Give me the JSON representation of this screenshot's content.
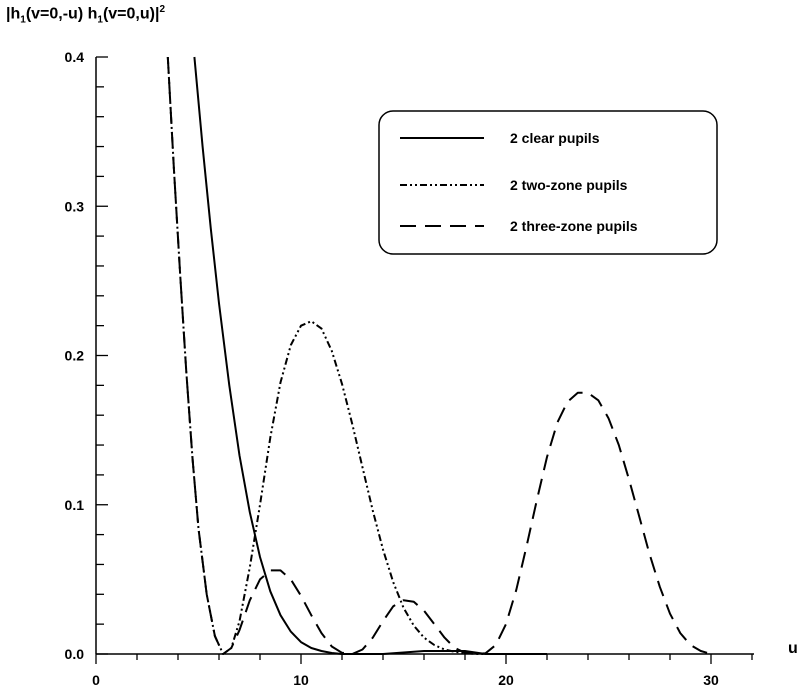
{
  "chart_data": {
    "type": "line",
    "ylabel": "|h1(v=0,-u) h1(v=0,u)|²",
    "ylabel_parts": {
      "p1": "|h",
      "s1": "1",
      "p2": "(v=0,-u) h",
      "s2": "1",
      "p3": "(v=0,u)|",
      "sup": "2"
    },
    "xlabel": "u",
    "xlim": [
      0,
      32
    ],
    "ylim": [
      0,
      0.4
    ],
    "xticks": [
      0,
      10,
      20,
      30
    ],
    "xtick_labels": [
      "0",
      "10",
      "20",
      "30"
    ],
    "yticks": [
      0.0,
      0.1,
      0.2,
      0.3,
      0.4
    ],
    "ytick_labels": [
      "0.0",
      "0.1",
      "0.2",
      "0.3",
      "0.4"
    ],
    "legend_position": "top-right",
    "series": [
      {
        "name": "2 clear pupils",
        "style": "solid",
        "x": [
          4.8,
          5.2,
          5.6,
          6.0,
          6.5,
          7.0,
          7.5,
          8.0,
          8.5,
          9.0,
          9.5,
          10.0,
          10.5,
          11.0,
          11.5,
          12.0,
          14.0,
          16.0,
          18.0,
          19.0,
          20.0,
          22.0
        ],
        "y": [
          0.4,
          0.34,
          0.285,
          0.235,
          0.18,
          0.133,
          0.095,
          0.065,
          0.042,
          0.026,
          0.015,
          0.008,
          0.004,
          0.002,
          0.0007,
          0.0,
          0.0,
          0.002,
          0.002,
          0.0,
          0.0,
          0.0
        ]
      },
      {
        "name": "2 two-zone pupils",
        "style": "dash-dot-dot",
        "x": [
          3.5,
          3.8,
          4.1,
          4.4,
          4.7,
          5.0,
          5.4,
          5.8,
          6.2,
          6.6,
          7.0,
          7.5,
          8.0,
          8.5,
          9.0,
          9.5,
          10.0,
          10.5,
          11.0,
          11.5,
          12.0,
          12.5,
          13.0,
          13.5,
          14.0,
          14.5,
          15.0,
          15.5,
          16.0,
          16.5,
          17.0,
          17.5,
          18.0,
          18.5,
          19.0,
          19.5,
          20.0
        ],
        "y": [
          0.4,
          0.325,
          0.255,
          0.19,
          0.132,
          0.084,
          0.04,
          0.012,
          0.0,
          0.004,
          0.022,
          0.058,
          0.1,
          0.145,
          0.182,
          0.207,
          0.22,
          0.223,
          0.218,
          0.203,
          0.181,
          0.154,
          0.125,
          0.096,
          0.07,
          0.048,
          0.031,
          0.019,
          0.011,
          0.006,
          0.003,
          0.0015,
          0.0007,
          0.0,
          0.0,
          0.0,
          0.0
        ]
      },
      {
        "name": "2 three-zone pupils",
        "style": "dashed",
        "x": [
          3.5,
          3.8,
          4.1,
          4.4,
          4.7,
          5.0,
          5.4,
          5.8,
          6.2,
          6.6,
          7.0,
          7.5,
          8.0,
          8.5,
          9.0,
          9.5,
          10.0,
          10.5,
          11.0,
          11.5,
          12.0,
          12.5,
          13.0,
          13.5,
          14.0,
          14.5,
          15.0,
          15.5,
          16.0,
          16.5,
          17.0,
          17.5,
          18.0,
          18.5,
          19.0,
          19.5,
          20.0,
          20.5,
          21.0,
          21.5,
          22.0,
          22.5,
          23.0,
          23.5,
          24.0,
          24.5,
          25.0,
          25.5,
          26.0,
          26.5,
          27.0,
          27.5,
          28.0,
          28.5,
          29.0,
          29.5,
          30.0
        ],
        "y": [
          0.4,
          0.325,
          0.255,
          0.19,
          0.132,
          0.084,
          0.04,
          0.012,
          0.0,
          0.004,
          0.016,
          0.036,
          0.05,
          0.056,
          0.056,
          0.05,
          0.039,
          0.026,
          0.014,
          0.005,
          0.0008,
          0.0,
          0.003,
          0.011,
          0.022,
          0.032,
          0.036,
          0.035,
          0.029,
          0.02,
          0.011,
          0.004,
          0.0008,
          0.0,
          0.0005,
          0.006,
          0.02,
          0.043,
          0.072,
          0.103,
          0.132,
          0.155,
          0.169,
          0.175,
          0.175,
          0.17,
          0.158,
          0.14,
          0.117,
          0.092,
          0.067,
          0.045,
          0.027,
          0.014,
          0.006,
          0.002,
          0.0
        ]
      }
    ]
  }
}
